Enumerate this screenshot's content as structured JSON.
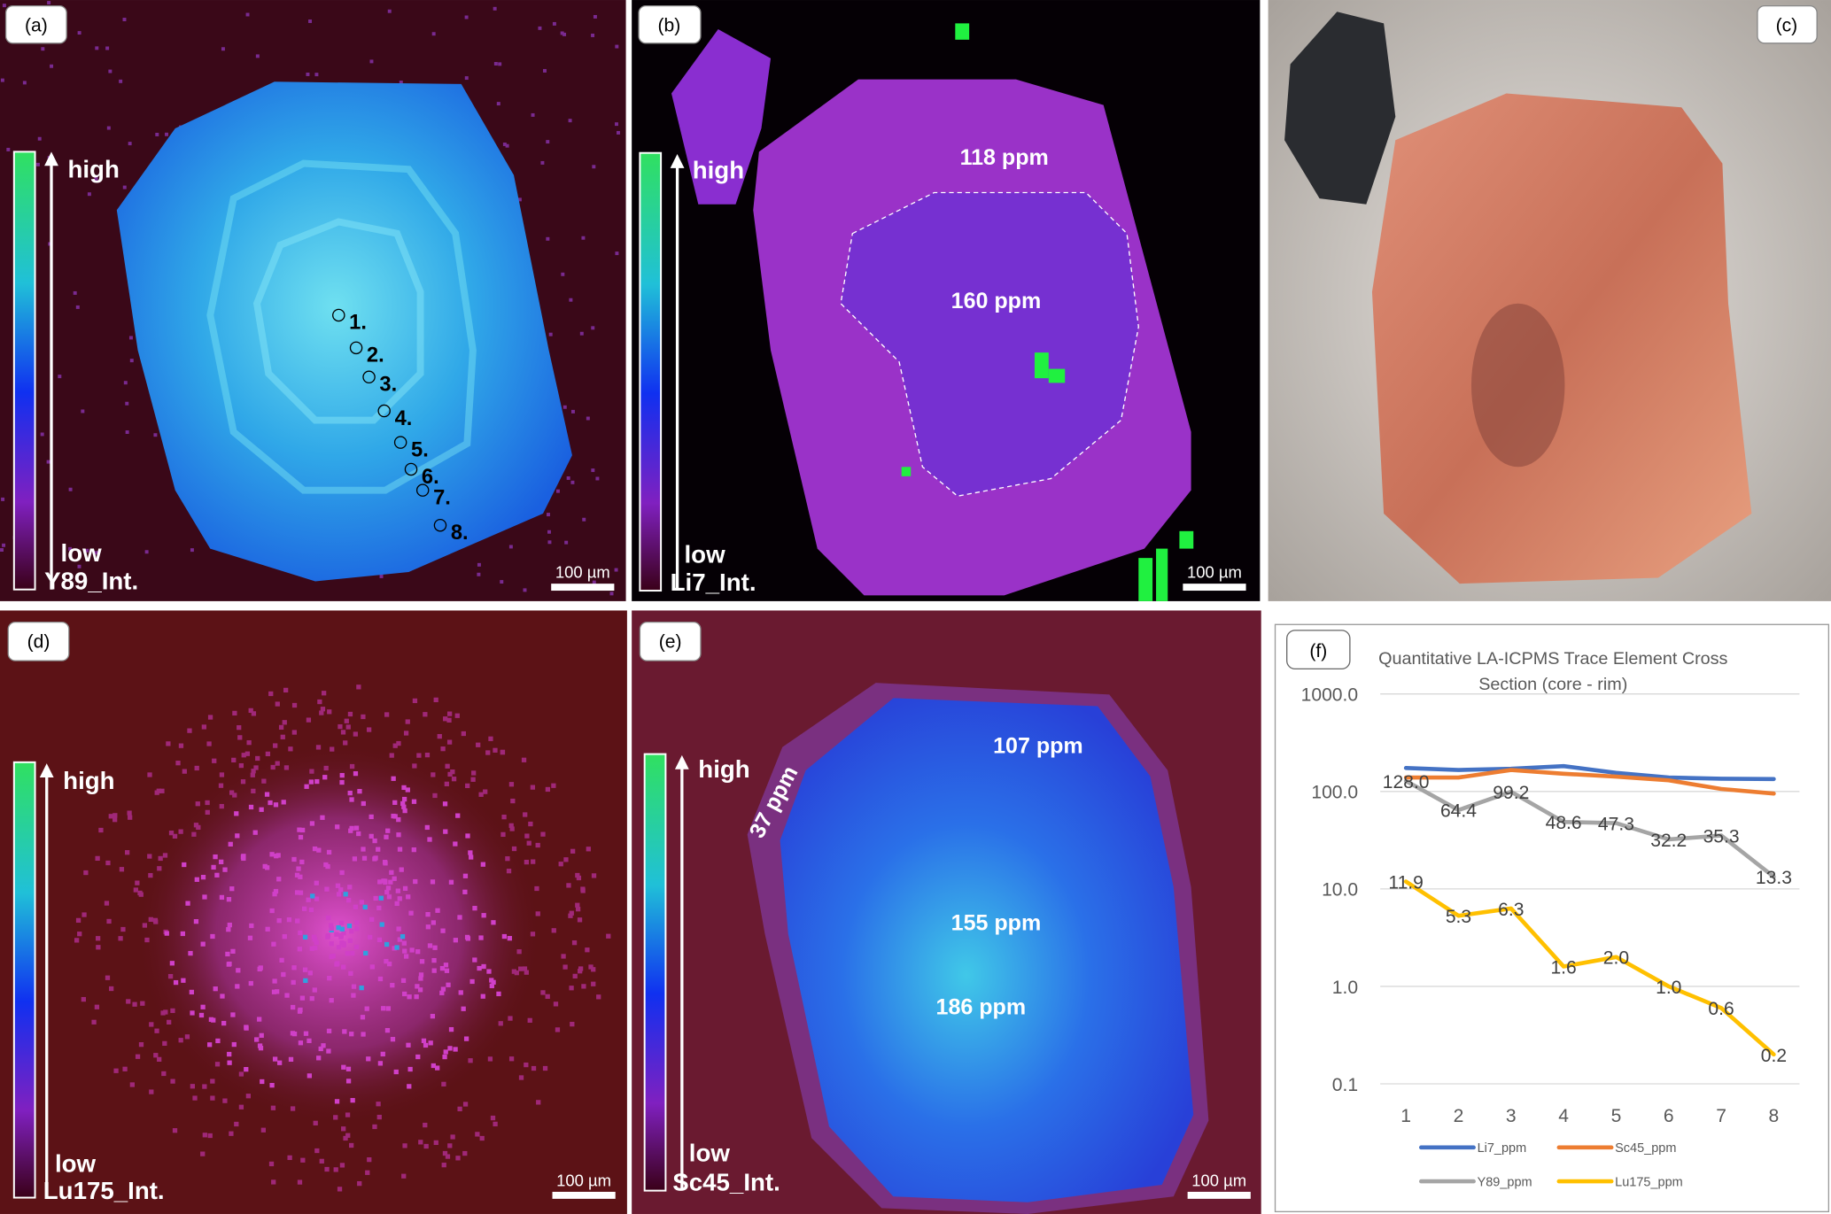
{
  "panels": {
    "a": {
      "label": "(a)",
      "high": "high",
      "low": "low",
      "channel": "Y89_Int.",
      "scale": "100 µm",
      "points": [
        "1.",
        "2.",
        "3.",
        "4.",
        "5.",
        "6.",
        "7.",
        "8."
      ]
    },
    "b": {
      "label": "(b)",
      "high": "high",
      "low": "low",
      "channel": "Li7_Int.",
      "scale": "100 µm",
      "annotations": [
        "118 ppm",
        "160 ppm"
      ]
    },
    "c": {
      "label": "(c)"
    },
    "d": {
      "label": "(d)",
      "high": "high",
      "low": "low",
      "channel": "Lu175_Int.",
      "scale": "100 µm"
    },
    "e": {
      "label": "(e)",
      "high": "high",
      "low": "low",
      "channel": "Sc45_Int.",
      "scale": "100 µm",
      "annotations": [
        "107 ppm",
        "155 ppm",
        "186 ppm",
        "37 ppm"
      ]
    },
    "f": {
      "label": "(f)"
    }
  },
  "colors": {
    "Li7_ppm": "#4472c4",
    "Sc45_ppm": "#ed7d31",
    "Y89_ppm": "#a5a5a5",
    "Lu175_ppm": "#ffc000"
  },
  "chart_data": {
    "type": "line",
    "title": [
      "Quantitative LA-ICPMS Trace Element Cross",
      "Section (core - rim)"
    ],
    "categories": [
      "1",
      "2",
      "3",
      "4",
      "5",
      "6",
      "7",
      "8"
    ],
    "yscale": "log",
    "ylim": [
      0.1,
      1000
    ],
    "yticks": [
      "1000.0",
      "100.0",
      "10.0",
      "1.0",
      "0.1"
    ],
    "ytick_values": [
      1000,
      100,
      10,
      1,
      0.1
    ],
    "grid": true,
    "legend": "bottom",
    "series": [
      {
        "name": "Li7_ppm",
        "values": [
          174,
          166,
          171,
          182,
          155,
          139,
          135,
          134
        ],
        "labels": null
      },
      {
        "name": "Sc45_ppm",
        "values": [
          139,
          139,
          166,
          152,
          142,
          130,
          106,
          95
        ],
        "labels": null
      },
      {
        "name": "Y89_ppm",
        "values": [
          128.0,
          64.4,
          99.2,
          48.6,
          47.3,
          32.2,
          35.3,
          13.3
        ],
        "labels": [
          "128.0",
          "64.4",
          "99.2",
          "48.6",
          "47.3",
          "32.2",
          "35.3",
          "13.3"
        ]
      },
      {
        "name": "Lu175_ppm",
        "values": [
          11.9,
          5.3,
          6.3,
          1.6,
          2.0,
          1.0,
          0.6,
          0.2
        ],
        "labels": [
          "11.9",
          "5.3",
          "6.3",
          "1.6",
          "2.0",
          "1.0",
          "0.6",
          "0.2"
        ]
      }
    ]
  }
}
